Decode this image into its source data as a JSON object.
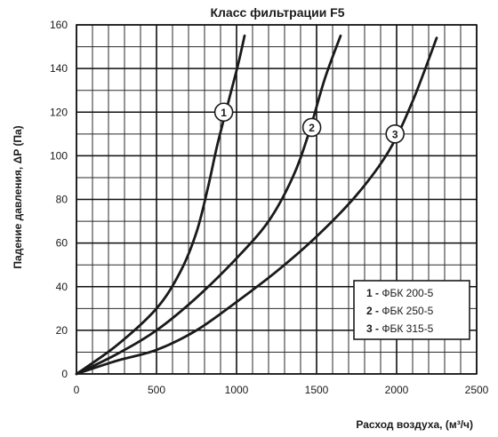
{
  "chart_data": {
    "type": "line",
    "title": "Класс фильтрации F5",
    "xlabel": "Расход воздуха, (м³/ч)",
    "ylabel": "Падение давления, ΔP (Па)",
    "xlim": [
      0,
      2500
    ],
    "ylim": [
      0,
      160
    ],
    "x_ticks": [
      0,
      500,
      1000,
      1500,
      2000,
      2500
    ],
    "y_ticks": [
      0,
      20,
      40,
      60,
      80,
      100,
      120,
      140,
      160
    ],
    "grid": true,
    "legend_position": "bottom-right",
    "series": [
      {
        "name": "ФБК 200-5",
        "label": "1",
        "points": [
          [
            0,
            0
          ],
          [
            250,
            13
          ],
          [
            500,
            30
          ],
          [
            650,
            47
          ],
          [
            750,
            65
          ],
          [
            820,
            85
          ],
          [
            880,
            105
          ],
          [
            950,
            125
          ],
          [
            1010,
            142
          ],
          [
            1050,
            155
          ]
        ]
      },
      {
        "name": "ФБК 250-5",
        "label": "2",
        "points": [
          [
            0,
            0
          ],
          [
            250,
            9
          ],
          [
            500,
            20
          ],
          [
            750,
            35
          ],
          [
            1000,
            53
          ],
          [
            1200,
            70
          ],
          [
            1350,
            90
          ],
          [
            1450,
            110
          ],
          [
            1550,
            135
          ],
          [
            1650,
            155
          ]
        ]
      },
      {
        "name": "ФБК 315-5",
        "label": "3",
        "points": [
          [
            0,
            0
          ],
          [
            250,
            6
          ],
          [
            500,
            11
          ],
          [
            750,
            20
          ],
          [
            1000,
            33
          ],
          [
            1250,
            47
          ],
          [
            1500,
            63
          ],
          [
            1750,
            82
          ],
          [
            1950,
            102
          ],
          [
            2100,
            125
          ],
          [
            2250,
            154
          ]
        ]
      }
    ],
    "curve_labels": [
      {
        "label": "1",
        "x": 920,
        "y": 120
      },
      {
        "label": "2",
        "x": 1470,
        "y": 113
      },
      {
        "label": "3",
        "x": 1990,
        "y": 110
      }
    ],
    "legend": [
      {
        "num": "1",
        "sep": "-",
        "text": "ФБК 200-5"
      },
      {
        "num": "2",
        "sep": "-",
        "text": "ФБК 250-5"
      },
      {
        "num": "3",
        "sep": "-",
        "text": "ФБК 315-5"
      }
    ]
  }
}
